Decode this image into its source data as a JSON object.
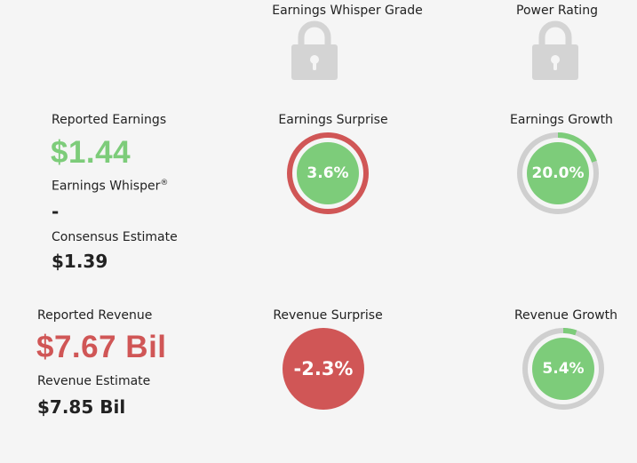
{
  "grades": {
    "whisper_grade_label": "Earnings Whisper Grade",
    "power_rating_label": "Power Rating",
    "whisper_grade_icon": "lock-icon",
    "power_rating_icon": "lock-icon"
  },
  "earnings": {
    "reported_label": "Reported Earnings",
    "reported_value": "$1.44",
    "whisper_label": "Earnings Whisper",
    "whisper_mark": "®",
    "whisper_value": "-",
    "consensus_label": "Consensus Estimate",
    "consensus_value": "$1.39",
    "surprise_label": "Earnings Surprise",
    "surprise_value": "3.6%",
    "surprise_ring_fraction": 1.0,
    "growth_label": "Earnings Growth",
    "growth_value": "20.0%",
    "growth_ring_fraction": 0.2
  },
  "revenue": {
    "reported_label": "Reported Revenue",
    "reported_value": "$7.67 Bil",
    "estimate_label": "Revenue Estimate",
    "estimate_value": "$7.85 Bil",
    "surprise_label": "Revenue Surprise",
    "surprise_value": "-2.3%",
    "growth_label": "Revenue Growth",
    "growth_value": "5.4%",
    "growth_ring_fraction": 0.054
  },
  "colors": {
    "green": "#7dcc7a",
    "red": "#d05656",
    "ring_gray": "#cfcfcf",
    "lock_gray": "#d4d4d4"
  }
}
